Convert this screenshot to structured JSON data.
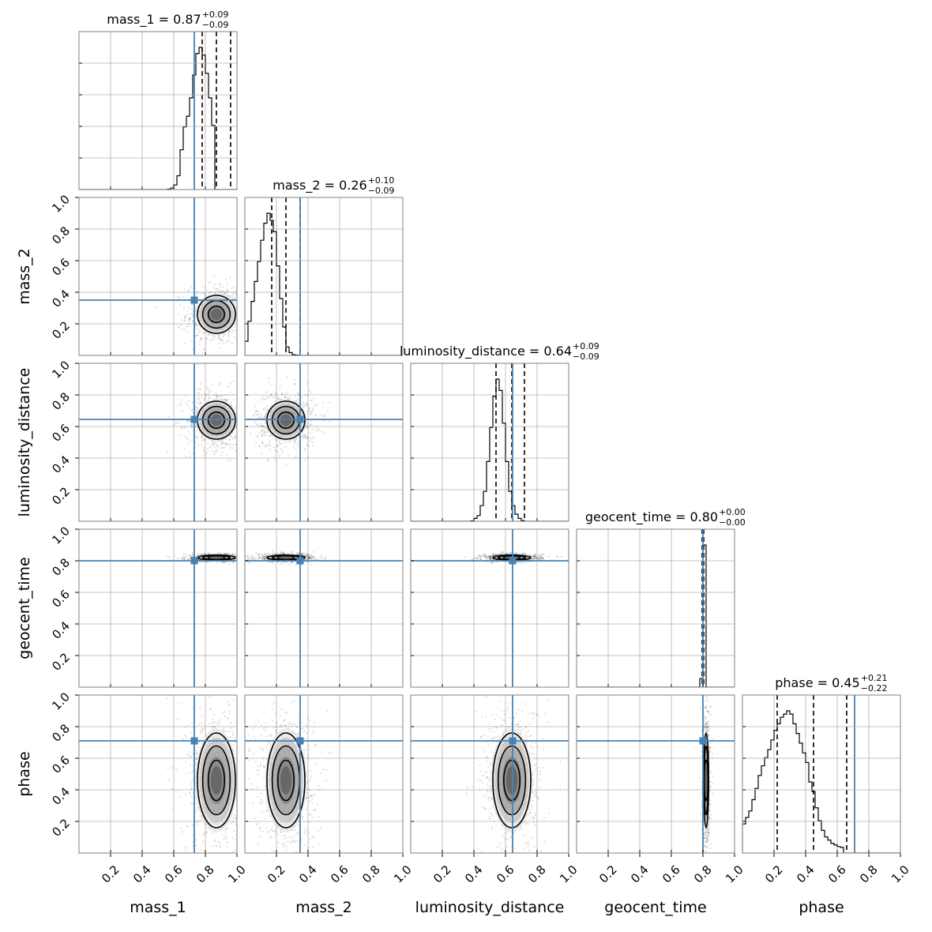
{
  "chart_data": {
    "type": "corner",
    "parameters": [
      "mass_1",
      "mass_2",
      "luminosity_distance",
      "geocent_time",
      "phase"
    ],
    "axis_range": [
      0,
      1
    ],
    "tick_labels": [
      "0.2",
      "0.4",
      "0.6",
      "0.8",
      "1.0"
    ],
    "grid": true,
    "truth_color": "#4682b4",
    "truths": {
      "mass_1": 0.73,
      "mass_2": 0.35,
      "luminosity_distance": 0.645,
      "geocent_time": 0.8,
      "phase": 0.71
    },
    "titles": [
      {
        "param": "mass_1",
        "text": "mass_1 = 0.87",
        "plus": "+0.09",
        "minus": "−0.09"
      },
      {
        "param": "mass_2",
        "text": "mass_2 = 0.26",
        "plus": "+0.10",
        "minus": "−0.09"
      },
      {
        "param": "luminosity_distance",
        "text": "luminosity_distance = 0.64",
        "plus": "+0.09",
        "minus": "−0.09"
      },
      {
        "param": "geocent_time",
        "text": "geocent_time = 0.80",
        "plus": "+0.00",
        "minus": "−0.00"
      },
      {
        "param": "phase",
        "text": "phase = 0.45",
        "plus": "+0.21",
        "minus": "−0.22"
      }
    ],
    "quantiles": {
      "mass_1": [
        0.78,
        0.87,
        0.96
      ],
      "mass_2": [
        0.17,
        0.26,
        0.35
      ],
      "luminosity_distance": [
        0.54,
        0.64,
        0.72
      ],
      "geocent_time": [
        0.795,
        0.8,
        0.805
      ],
      "phase": [
        0.22,
        0.45,
        0.66
      ]
    },
    "histograms": {
      "mass_1": {
        "edges_start": 0.56,
        "bin_width": 0.02,
        "counts": [
          0.3,
          1,
          3,
          9,
          26,
          41,
          48,
          60,
          75,
          89,
          93,
          88,
          76,
          60,
          42
        ]
      },
      "mass_2": {
        "edges_start": 0.0,
        "bin_width": 0.02,
        "counts": [
          10,
          24,
          38,
          52,
          66,
          81,
          93,
          100,
          95,
          87,
          63,
          40,
          20,
          6,
          2,
          0.5,
          0.2
        ]
      },
      "luminosity_distance": {
        "edges_start": 0.38,
        "bin_width": 0.02,
        "counts": [
          0.3,
          2,
          4,
          11,
          21,
          42,
          66,
          88,
          100,
          92,
          69,
          42,
          21,
          11,
          5,
          2,
          0.5
        ]
      },
      "geocent_time": {
        "edges_start": 0.78,
        "bin_width": 0.02,
        "counts": [
          6,
          100
        ]
      },
      "phase": {
        "edges_start": 0.0,
        "bin_width": 0.02,
        "counts": [
          18,
          22,
          26,
          33,
          40,
          48,
          54,
          59,
          64,
          70,
          76,
          80,
          84,
          86,
          88,
          86,
          80,
          74,
          68,
          62,
          56,
          44,
          38,
          28,
          20,
          14,
          10,
          8,
          6,
          5,
          4,
          3.5
        ]
      }
    },
    "pairs": [
      {
        "x": "mass_1",
        "y": "mass_2",
        "x_mean": 0.87,
        "x_sd": 0.06,
        "y_mean": 0.26,
        "y_sd": 0.06
      },
      {
        "x": "mass_1",
        "y": "luminosity_distance",
        "x_mean": 0.87,
        "x_sd": 0.06,
        "y_mean": 0.64,
        "y_sd": 0.06
      },
      {
        "x": "mass_2",
        "y": "luminosity_distance",
        "x_mean": 0.26,
        "x_sd": 0.06,
        "y_mean": 0.64,
        "y_sd": 0.06
      },
      {
        "x": "mass_1",
        "y": "geocent_time",
        "x_mean": 0.87,
        "x_sd": 0.06,
        "y_mean": 0.82,
        "y_sd": 0.008
      },
      {
        "x": "mass_2",
        "y": "geocent_time",
        "x_mean": 0.26,
        "x_sd": 0.06,
        "y_mean": 0.82,
        "y_sd": 0.008
      },
      {
        "x": "luminosity_distance",
        "y": "geocent_time",
        "x_mean": 0.64,
        "x_sd": 0.06,
        "y_mean": 0.82,
        "y_sd": 0.008
      },
      {
        "x": "mass_1",
        "y": "phase",
        "x_mean": 0.87,
        "x_sd": 0.06,
        "y_mean": 0.46,
        "y_sd": 0.15
      },
      {
        "x": "mass_2",
        "y": "phase",
        "x_mean": 0.26,
        "x_sd": 0.06,
        "y_mean": 0.46,
        "y_sd": 0.15
      },
      {
        "x": "luminosity_distance",
        "y": "phase",
        "x_mean": 0.64,
        "x_sd": 0.06,
        "y_mean": 0.46,
        "y_sd": 0.15
      },
      {
        "x": "geocent_time",
        "y": "phase",
        "x_mean": 0.82,
        "x_sd": 0.008,
        "y_mean": 0.46,
        "y_sd": 0.15
      }
    ]
  }
}
